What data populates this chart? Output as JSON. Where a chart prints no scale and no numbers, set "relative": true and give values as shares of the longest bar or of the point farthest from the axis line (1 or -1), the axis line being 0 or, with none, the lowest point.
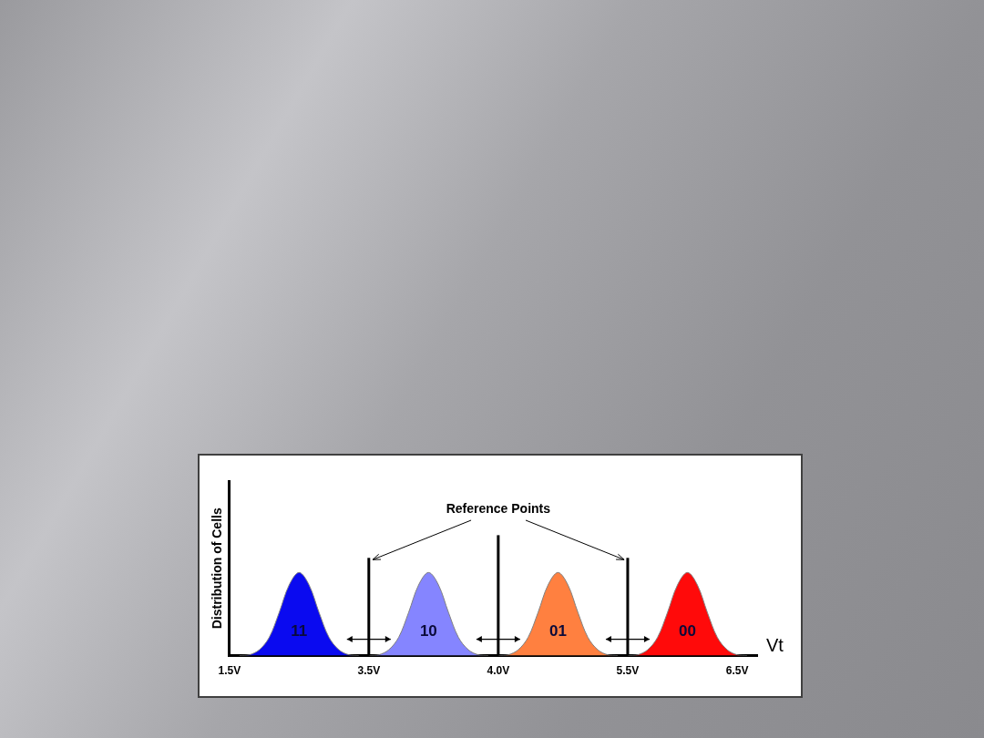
{
  "chart_data": {
    "type": "area",
    "ylabel": "Distribution of Cells",
    "xlabel": "Vt",
    "relative": true,
    "legend": false,
    "grid": false,
    "marker": "none",
    "categories": [
      "1.5V",
      null,
      null,
      null,
      null,
      null,
      null,
      null,
      null,
      null,
      null,
      null,
      null,
      null,
      "3.5V",
      null,
      null,
      null,
      null,
      null,
      null,
      null,
      null,
      null,
      null,
      null,
      null,
      "4.0V",
      null,
      null,
      null,
      null,
      null,
      null,
      null,
      null,
      null,
      null,
      null,
      null,
      "5.5V",
      null,
      null,
      null,
      null,
      null,
      null,
      null,
      null,
      null,
      null,
      "6.5V",
      null,
      null
    ],
    "series": [
      {
        "name": "11",
        "color": "#0a0af0",
        "values": [
          null,
          0,
          0.01,
          0.07,
          0.22,
          0.52,
          0.85,
          1,
          0.85,
          0.52,
          0.22,
          0.07,
          0.01,
          0,
          null,
          null,
          null,
          null,
          null,
          null,
          null,
          null,
          null,
          null,
          null,
          null,
          null,
          null,
          null,
          null,
          null,
          null,
          null,
          null,
          null,
          null,
          null,
          null,
          null,
          null,
          null,
          null,
          null,
          null,
          null,
          null,
          null,
          null,
          null,
          null,
          null,
          null,
          null,
          null
        ]
      },
      {
        "name": "10",
        "color": "#8585ff",
        "values": [
          null,
          null,
          null,
          null,
          null,
          null,
          null,
          null,
          null,
          null,
          null,
          null,
          null,
          null,
          0,
          0.01,
          0.07,
          0.22,
          0.52,
          0.85,
          1,
          0.85,
          0.52,
          0.22,
          0.07,
          0.01,
          0,
          null,
          null,
          null,
          null,
          null,
          null,
          null,
          null,
          null,
          null,
          null,
          null,
          null,
          null,
          null,
          null,
          null,
          null,
          null,
          null,
          null,
          null,
          null,
          null,
          null,
          null,
          null
        ]
      },
      {
        "name": "01",
        "color": "#ff8040",
        "values": [
          null,
          null,
          null,
          null,
          null,
          null,
          null,
          null,
          null,
          null,
          null,
          null,
          null,
          null,
          null,
          null,
          null,
          null,
          null,
          null,
          null,
          null,
          null,
          null,
          null,
          null,
          null,
          0,
          0.01,
          0.07,
          0.22,
          0.52,
          0.85,
          1,
          0.85,
          0.52,
          0.22,
          0.07,
          0.01,
          0,
          null,
          null,
          null,
          null,
          null,
          null,
          null,
          null,
          null,
          null,
          null,
          null,
          null,
          null
        ]
      },
      {
        "name": "00",
        "color": "#ff0a0a",
        "values": [
          null,
          null,
          null,
          null,
          null,
          null,
          null,
          null,
          null,
          null,
          null,
          null,
          null,
          null,
          null,
          null,
          null,
          null,
          null,
          null,
          null,
          null,
          null,
          null,
          null,
          null,
          null,
          null,
          null,
          null,
          null,
          null,
          null,
          null,
          null,
          null,
          null,
          null,
          null,
          null,
          0,
          0.01,
          0.07,
          0.22,
          0.52,
          0.85,
          1,
          0.85,
          0.52,
          0.22,
          0.07,
          0.01,
          0,
          null
        ]
      }
    ],
    "ref_lines": [
      {
        "axis": "x",
        "value": "3.5V"
      },
      {
        "axis": "x",
        "value": "4.0V"
      },
      {
        "axis": "x",
        "value": "5.5V"
      }
    ],
    "annotations": [
      "Reference Points"
    ]
  }
}
